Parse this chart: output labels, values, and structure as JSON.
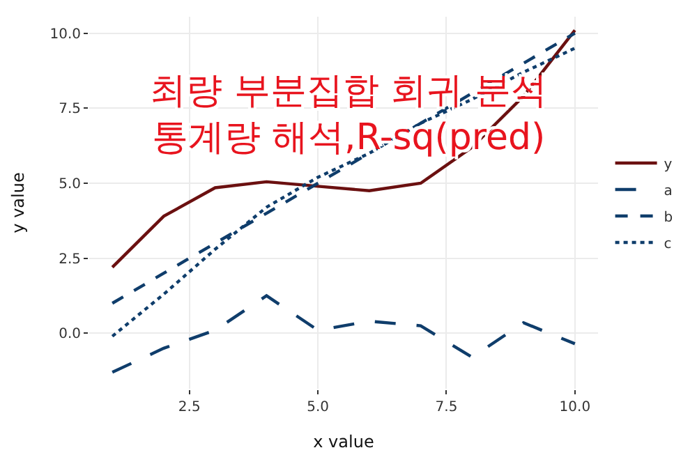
{
  "chart_data": {
    "type": "line",
    "title": "최량 부분집합 회귀 분석\n통계량 해석,R-sq(pred)",
    "xlabel": "x value",
    "ylabel": "y value",
    "x": [
      1,
      2,
      3,
      4,
      5,
      6,
      7,
      8,
      9,
      10
    ],
    "series": [
      {
        "name": "y",
        "color": "#6b1010",
        "line_style": "solid",
        "values": [
          2.2,
          3.9,
          4.85,
          5.05,
          4.9,
          4.75,
          5.0,
          6.2,
          7.9,
          10.1
        ]
      },
      {
        "name": "a",
        "color": "#0f3d6b",
        "line_style": "longdash",
        "values": [
          -1.3,
          -0.5,
          0.1,
          1.25,
          0.1,
          0.4,
          0.25,
          -0.8,
          0.35,
          -0.35
        ]
      },
      {
        "name": "b",
        "color": "#0f3d6b",
        "line_style": "dashed",
        "values": [
          1.0,
          2.0,
          3.0,
          4.0,
          5.0,
          6.0,
          7.0,
          8.0,
          9.0,
          10.0
        ]
      },
      {
        "name": "c",
        "color": "#0f3d6b",
        "line_style": "dotted",
        "values": [
          -0.1,
          1.3,
          2.8,
          4.2,
          5.2,
          6.0,
          7.0,
          7.8,
          8.7,
          9.5
        ]
      }
    ],
    "xlim": [
      0.55,
      10.45
    ],
    "ylim": [
      -1.85,
      10.55
    ],
    "xticks": [
      2.5,
      {
        "value": 5,
        "label": "5.0"
      },
      7.5,
      {
        "value": 10,
        "label": "10.0"
      }
    ],
    "yticks": [
      {
        "value": 0,
        "label": "0.0"
      },
      2.5,
      {
        "value": 5,
        "label": "5.0"
      },
      7.5,
      {
        "value": 10,
        "label": "10.0"
      }
    ],
    "grid": true,
    "legend": "right"
  }
}
